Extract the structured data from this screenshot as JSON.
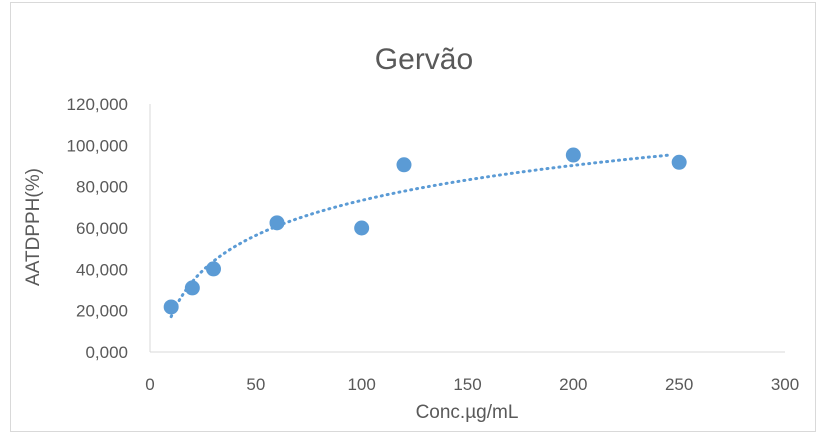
{
  "chart_data": {
    "type": "scatter",
    "title": "Gervão",
    "xlabel": "Conc.µg/mL",
    "ylabel": "AATDPPH(%)",
    "xlim": [
      0,
      300
    ],
    "ylim": [
      0,
      120
    ],
    "x_ticks": [
      "0",
      "50",
      "100",
      "150",
      "200",
      "250",
      "300"
    ],
    "y_ticks": [
      "0,000",
      "20,000",
      "40,000",
      "60,000",
      "80,000",
      "100,000",
      "120,000"
    ],
    "grid": false,
    "legend": "none",
    "series": [
      {
        "x": [
          10,
          20,
          30,
          60,
          100,
          120,
          200,
          250
        ],
        "y": [
          21.8,
          31.0,
          40.2,
          62.5,
          60.0,
          90.6,
          95.3,
          91.8
        ],
        "color": "#5b9bd5"
      }
    ],
    "trendline": {
      "kind": "logarithmic",
      "style": "dotted",
      "color": "#5b9bd5",
      "x_range": [
        10,
        245
      ]
    }
  }
}
